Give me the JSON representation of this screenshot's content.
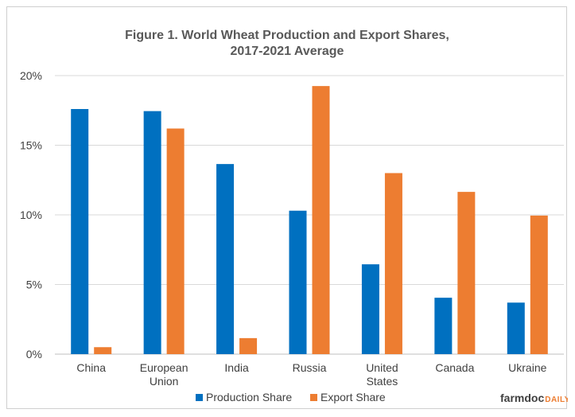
{
  "chart_data": {
    "type": "bar",
    "title_lines": [
      "Figure  1. World Wheat Production  and Export Shares,",
      "2017-2021 Average"
    ],
    "categories": [
      [
        "China"
      ],
      [
        "European",
        "Union"
      ],
      [
        "India"
      ],
      [
        "Russia"
      ],
      [
        "United",
        "States"
      ],
      [
        "Canada"
      ],
      [
        "Ukraine"
      ]
    ],
    "series": [
      {
        "name": "Production Share",
        "color": "#0070c0",
        "values": [
          17.6,
          17.45,
          13.65,
          10.3,
          6.45,
          4.05,
          3.7
        ]
      },
      {
        "name": "Export Share",
        "color": "#ed7d31",
        "values": [
          0.5,
          16.2,
          1.15,
          19.25,
          13.0,
          11.65,
          9.95
        ]
      }
    ],
    "y_ticks": [
      "0%",
      "5%",
      "10%",
      "15%",
      "20%"
    ],
    "ylim": [
      0,
      20
    ],
    "grid": true,
    "legend_position": "bottom",
    "xlabel": "",
    "ylabel": ""
  },
  "brand": {
    "part1": "farmdoc",
    "part2": "DAILY"
  }
}
